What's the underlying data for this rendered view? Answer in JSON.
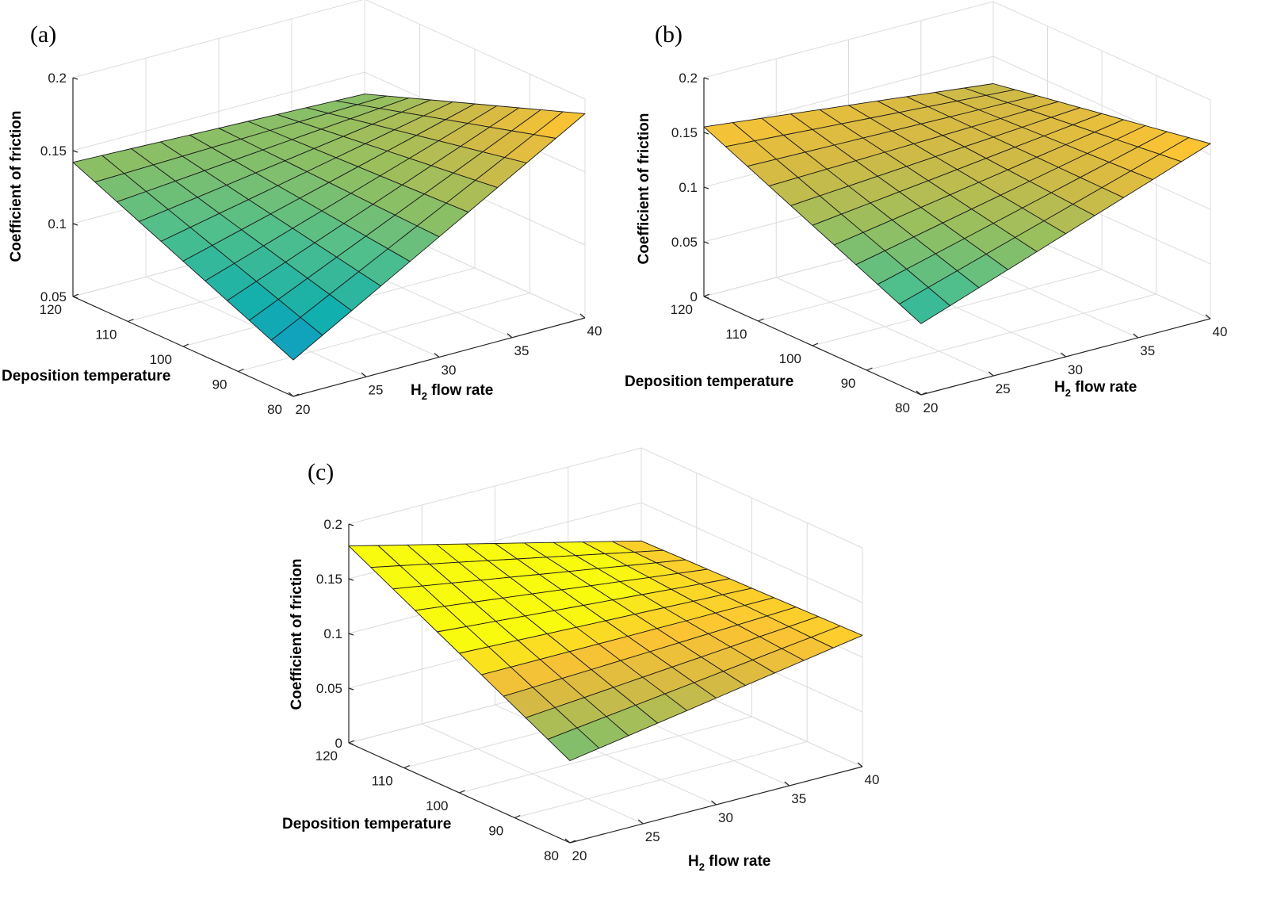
{
  "figure": {
    "subplots": [
      {
        "label": "(a)"
      },
      {
        "label": "(b)"
      },
      {
        "label": "(c)"
      }
    ]
  },
  "chart_data": [
    {
      "type": "surface",
      "title": "(a)",
      "xlabel": "Deposition temperature",
      "ylabel_main": "H",
      "ylabel_sub": "2",
      "ylabel_rest": " flow rate",
      "zlabel": "Coefficient of friction",
      "x_range": [
        80,
        120
      ],
      "y_range": [
        20,
        40
      ],
      "zlim": [
        0.05,
        0.2
      ],
      "x_ticks": [
        80,
        90,
        100,
        110,
        120
      ],
      "y_ticks": [
        20,
        25,
        30,
        35,
        40
      ],
      "z_ticks": [
        0.05,
        0.1,
        0.15,
        0.2
      ],
      "z_tick_labels": [
        "0.05",
        "0.1",
        "0.15",
        "0.2"
      ],
      "corners": {
        "t80_h20": 0.075,
        "t120_h20": 0.142,
        "t80_h40": 0.19,
        "t120_h40": 0.135
      },
      "grid_size": 10,
      "colormap": "parula",
      "color_range": [
        0.075,
        0.19
      ]
    },
    {
      "type": "surface",
      "title": "(b)",
      "xlabel": "Deposition temperature",
      "ylabel_main": "H",
      "ylabel_sub": "2",
      "ylabel_rest": " flow rate",
      "zlabel": "Coefficient of friction",
      "x_range": [
        80,
        120
      ],
      "y_range": [
        20,
        40
      ],
      "zlim": [
        0,
        0.2
      ],
      "x_ticks": [
        80,
        90,
        100,
        110,
        120
      ],
      "y_ticks": [
        20,
        25,
        30,
        35,
        40
      ],
      "z_ticks": [
        0,
        0.05,
        0.1,
        0.15,
        0.2
      ],
      "z_tick_labels": [
        "0",
        "0.05",
        "0.1",
        "0.15",
        "0.2"
      ],
      "corners": {
        "t80_h20": 0.065,
        "t120_h20": 0.155,
        "t80_h40": 0.16,
        "t120_h40": 0.125
      },
      "grid_size": 10,
      "colormap": "parula",
      "color_range": [
        0.035,
        0.16
      ]
    },
    {
      "type": "surface",
      "title": "(c)",
      "xlabel": "Deposition temperature",
      "ylabel_main": "H",
      "ylabel_sub": "2",
      "ylabel_rest": " flow rate",
      "zlabel": "Coefficient of friction",
      "x_range": [
        80,
        120
      ],
      "y_range": [
        20,
        40
      ],
      "zlim": [
        0,
        0.2
      ],
      "x_ticks": [
        80,
        90,
        100,
        110,
        120
      ],
      "y_ticks": [
        20,
        25,
        30,
        35,
        40
      ],
      "z_ticks": [
        0,
        0.05,
        0.1,
        0.15,
        0.2
      ],
      "z_tick_labels": [
        "0",
        "0.05",
        "0.1",
        "0.15",
        "0.2"
      ],
      "corners": {
        "t80_h20": 0.075,
        "t120_h20": 0.18,
        "t80_h40": 0.12,
        "t120_h40": 0.115
      },
      "grid_size": 10,
      "colormap": "parula",
      "color_range": [
        0.04,
        0.12
      ]
    }
  ]
}
